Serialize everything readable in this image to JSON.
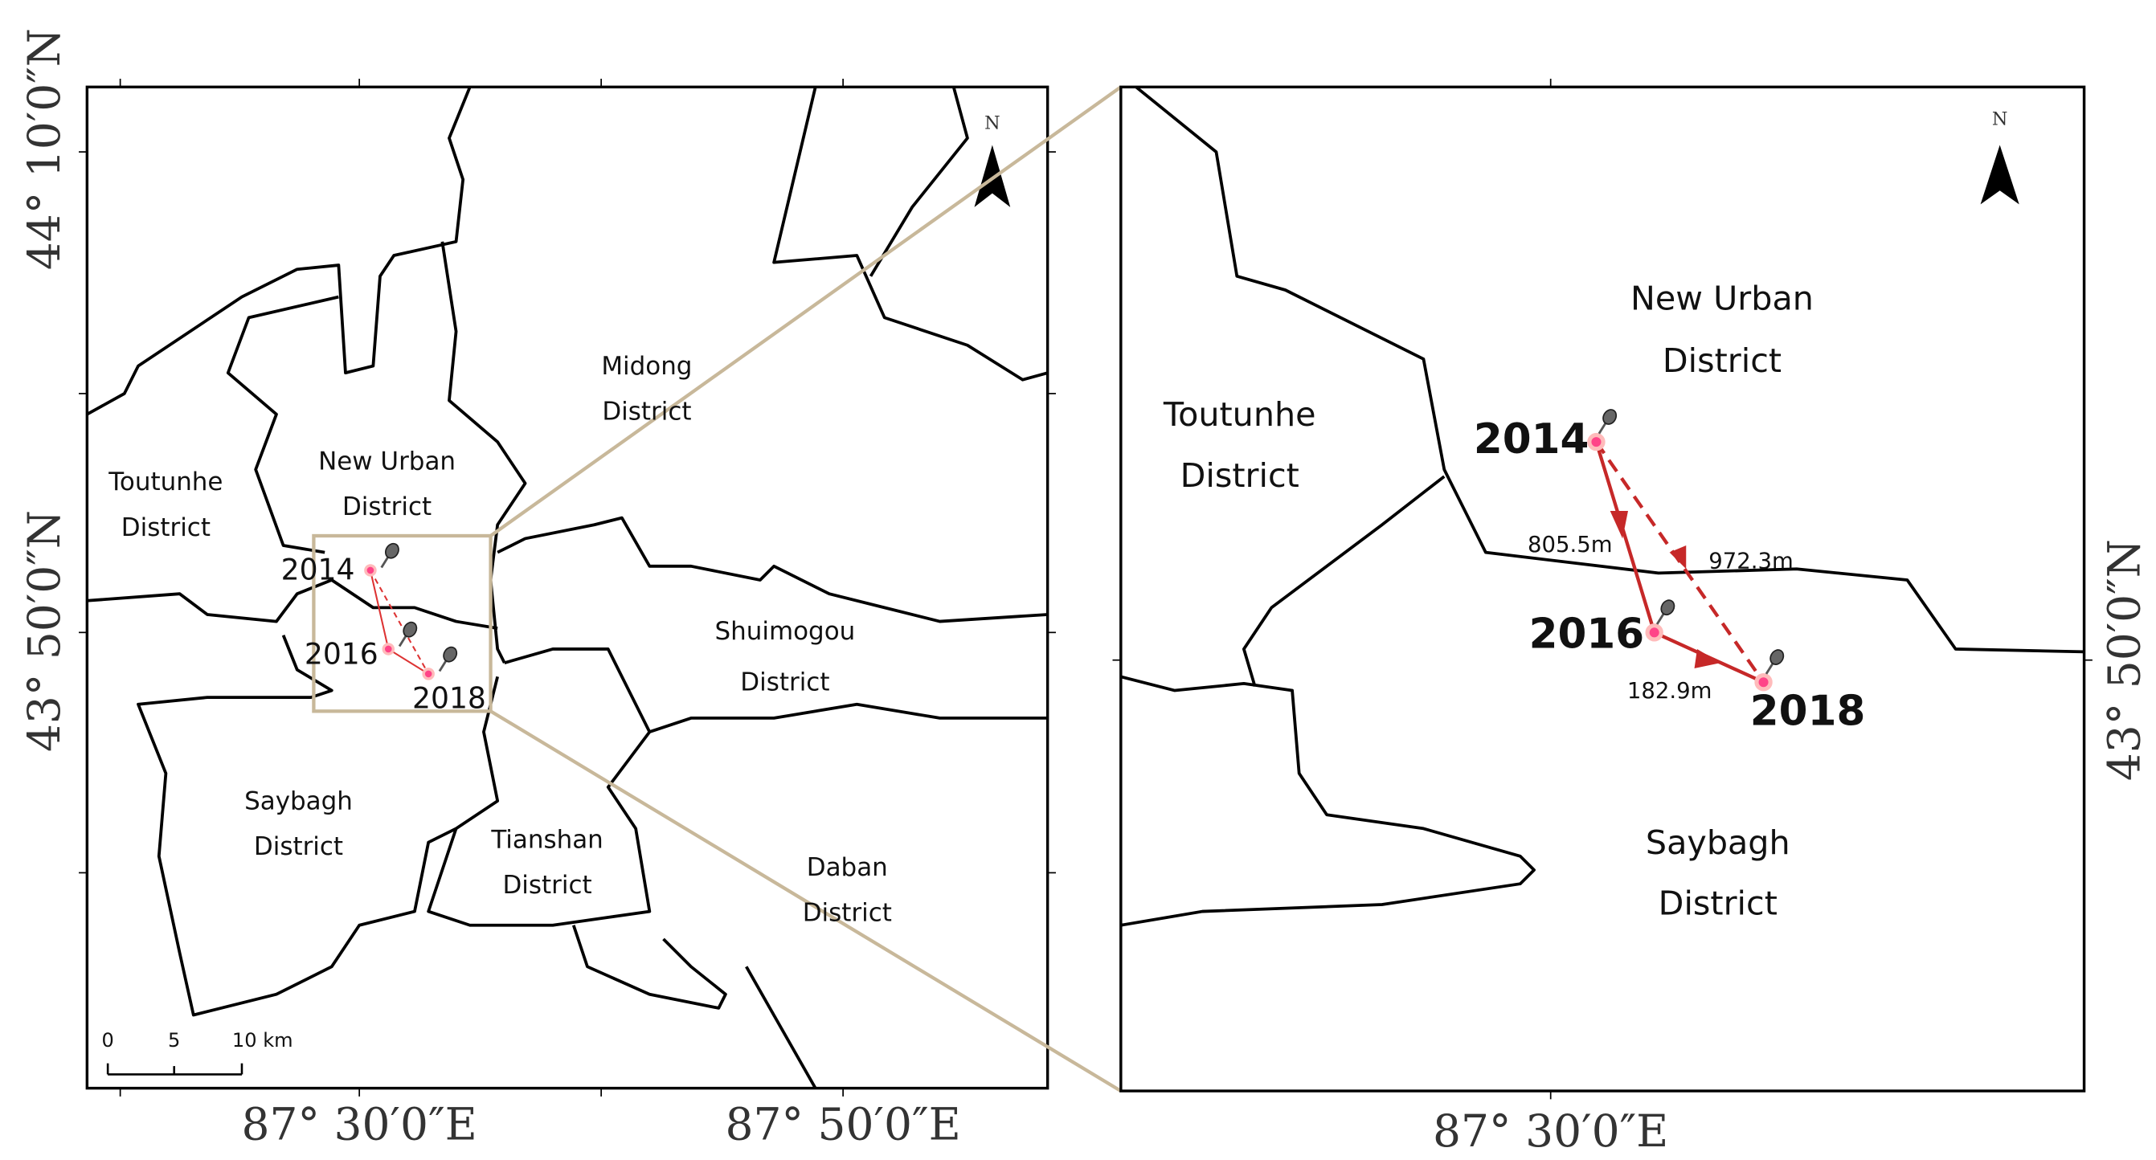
{
  "left_map": {
    "districts": [
      {
        "lines": [
          "Toutunhe",
          "District"
        ]
      },
      {
        "lines": [
          "New Urban",
          "District"
        ]
      },
      {
        "lines": [
          "Midong",
          "District"
        ]
      },
      {
        "lines": [
          "Shuimogou",
          "District"
        ]
      },
      {
        "lines": [
          "Saybagh",
          "District"
        ]
      },
      {
        "lines": [
          "Tianshan",
          "District"
        ]
      },
      {
        "lines": [
          "Daban",
          "District"
        ]
      }
    ],
    "years": [
      "2014",
      "2016",
      "2018"
    ],
    "north": "N",
    "scale": [
      "0",
      "5",
      "10 km"
    ],
    "lat_labels": [
      "44° 10′0″N",
      "43° 50′0″N"
    ],
    "lon_labels": [
      "87° 30′0″E",
      "87° 50′0″E"
    ]
  },
  "right_map": {
    "districts": [
      {
        "lines": [
          "Toutunhe",
          "District"
        ]
      },
      {
        "lines": [
          "New Urban",
          "District"
        ]
      },
      {
        "lines": [
          "Saybagh",
          "District"
        ]
      }
    ],
    "years": [
      "2014",
      "2016",
      "2018"
    ],
    "distances": [
      "805.5m",
      "972.3m",
      "182.9m"
    ],
    "north": "N",
    "lat_label": "43° 50′0″N",
    "lon_label": "87° 30′0″E"
  }
}
